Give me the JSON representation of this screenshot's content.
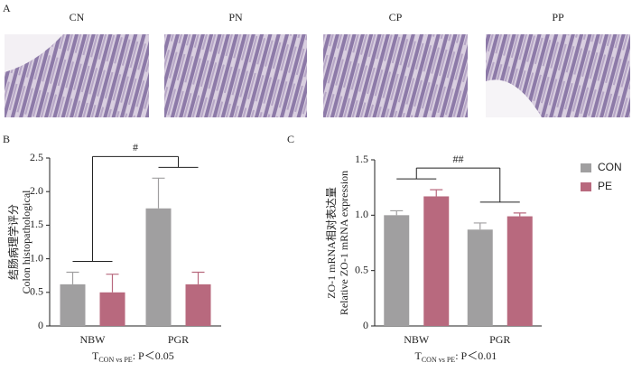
{
  "panel_a": {
    "label": "A",
    "images": [
      "CN",
      "PN",
      "CP",
      "PP"
    ]
  },
  "chart_data": [
    {
      "type": "bar",
      "panel": "B",
      "ylabel": [
        "结肠病理学评分",
        "Colon histopathological"
      ],
      "categories": [
        "NBW",
        "PGR"
      ],
      "series": [
        {
          "name": "CON",
          "color": "#a09fa0",
          "values": [
            0.62,
            1.75
          ],
          "errors": [
            0.18,
            0.45
          ]
        },
        {
          "name": "PE",
          "color": "#b8697e",
          "values": [
            0.5,
            0.62
          ],
          "errors": [
            0.27,
            0.18
          ]
        }
      ],
      "ylim": [
        0,
        2.5
      ],
      "yticks": [
        0,
        0.5,
        {
          "value": 1,
          "label": "1.0"
        },
        1.5,
        {
          "value": 2,
          "label": "2.0"
        },
        2.5
      ],
      "significance": "#",
      "note": {
        "main": "T",
        "sub": "CON vs PE",
        "rest": ": P＜0.05"
      }
    },
    {
      "type": "bar",
      "panel": "C",
      "ylabel": [
        "ZO-1 mRNA相对表达量",
        "Relative ZO-1 mRNA expression"
      ],
      "categories": [
        "NBW",
        "PGR"
      ],
      "series": [
        {
          "name": "CON",
          "color": "#a09fa0",
          "values": [
            1.0,
            0.87
          ],
          "errors": [
            0.04,
            0.06
          ]
        },
        {
          "name": "PE",
          "color": "#b8697e",
          "values": [
            1.17,
            0.99
          ],
          "errors": [
            0.06,
            0.03
          ]
        }
      ],
      "ylim": [
        0,
        1.5
      ],
      "yticks": [
        0,
        0.5,
        {
          "value": 1,
          "label": "1.0"
        },
        1.5
      ],
      "significance": "##",
      "legend": "right",
      "note": {
        "main": "T",
        "sub": "CON vs PE",
        "rest": ": P＜0.01"
      }
    }
  ]
}
